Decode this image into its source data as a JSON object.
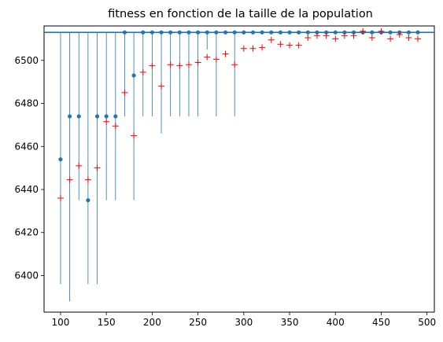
{
  "chart_data": {
    "type": "scatter",
    "title": "fitness en fonction de la taille de la population",
    "xlabel": "",
    "ylabel": "",
    "xlim": [
      82,
      508
    ],
    "ylim": [
      6383,
      6516
    ],
    "x_ticks": [
      100,
      150,
      200,
      250,
      300,
      350,
      400,
      450,
      500
    ],
    "y_ticks": [
      6400,
      6420,
      6440,
      6460,
      6480,
      6500
    ],
    "reference_line": {
      "y": 6513,
      "color": "#1f77b4"
    },
    "x": [
      100,
      110,
      120,
      130,
      140,
      150,
      160,
      170,
      180,
      190,
      200,
      210,
      220,
      230,
      240,
      250,
      260,
      270,
      280,
      290,
      300,
      310,
      320,
      330,
      340,
      350,
      360,
      370,
      380,
      390,
      400,
      410,
      420,
      430,
      440,
      450,
      460,
      470,
      480,
      490
    ],
    "series": [
      {
        "marker": "dot",
        "color": "#1f77b4",
        "values": [
          6454,
          6474,
          6474,
          6435,
          6474,
          6474,
          6474,
          6513,
          6493,
          6513,
          6513,
          6513,
          6513,
          6513,
          6513,
          6513,
          6513,
          6513,
          6513,
          6513,
          6513,
          6513,
          6513,
          6513,
          6513,
          6513,
          6513,
          6513,
          6513,
          6513,
          6513,
          6513,
          6513,
          6513,
          6513,
          6513,
          6513,
          6513,
          6513,
          6513
        ],
        "low": [
          6396,
          6388,
          6435,
          6396,
          6396,
          6435,
          6435,
          6474,
          6435,
          6474,
          6474,
          6466,
          6474,
          6474,
          6474,
          6474,
          6505,
          6474,
          6513,
          6474,
          6513,
          6513,
          6513,
          6513,
          6513,
          6513,
          6513,
          6513,
          6513,
          6513,
          6513,
          6513,
          6513,
          6513,
          6513,
          6513,
          6513,
          6513,
          6513,
          6513
        ],
        "high": [
          6513,
          6513,
          6513,
          6513,
          6513,
          6513,
          6513,
          6513,
          6513,
          6513,
          6513,
          6513,
          6513,
          6513,
          6513,
          6513,
          6513,
          6513,
          6513,
          6513,
          6513,
          6513,
          6513,
          6513,
          6513,
          6513,
          6513,
          6513,
          6513,
          6513,
          6513,
          6513,
          6513,
          6513,
          6513,
          6513,
          6513,
          6513,
          6513,
          6513
        ]
      },
      {
        "marker": "plus",
        "color": "#ff0000",
        "values": [
          6436,
          6444.5,
          6451,
          6444.5,
          6450,
          6471.5,
          6469.5,
          6485,
          6465,
          6494.5,
          6497.5,
          6488,
          6498,
          6497.5,
          6498,
          6499,
          6501.5,
          6500.5,
          6503,
          6498,
          6505.5,
          6505.5,
          6506,
          6509.5,
          6507.5,
          6507,
          6507,
          6510.5,
          6511.5,
          6511.5,
          6510,
          6511.5,
          6511.5,
          6513.5,
          6510.5,
          6513.5,
          6510,
          6512,
          6510.5,
          6510
        ]
      }
    ]
  }
}
